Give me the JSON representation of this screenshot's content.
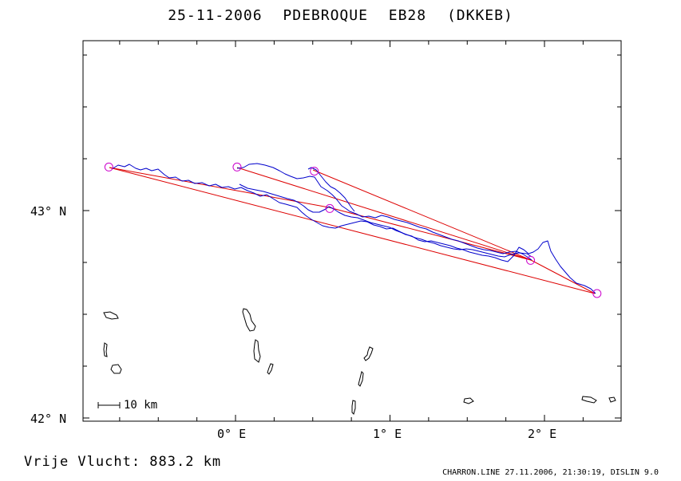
{
  "title": "25-11-2006   PDEBROQUE   EB28 (DKKEB)",
  "y_axis": {
    "ticks": [
      {
        "value": 43,
        "label": "43° N"
      },
      {
        "value": 42,
        "label": "42° N"
      }
    ]
  },
  "x_axis": {
    "ticks": [
      {
        "value": 0,
        "label": "0° E"
      },
      {
        "value": 1,
        "label": "1° E"
      },
      {
        "value": 2,
        "label": "2° E"
      }
    ]
  },
  "scale_bar": {
    "label": "10 km"
  },
  "footer": {
    "distance_text": "Vrije Vlucht:  883.2 km",
    "credit_text": "CHARRON.LINE 27.11.2006, 21:30:19, DISLIN 9.0"
  },
  "turnpoints": [
    {
      "lon": -0.82,
      "lat": 43.21
    },
    {
      "lon": 0.01,
      "lat": 43.21
    },
    {
      "lon": 0.51,
      "lat": 43.19
    },
    {
      "lon": 0.61,
      "lat": 43.01
    },
    {
      "lon": 1.91,
      "lat": 42.76
    },
    {
      "lon": 2.34,
      "lat": 42.6
    }
  ],
  "colors": {
    "track": "#0000cc",
    "route": "#dd0000",
    "turnpoint": "#cc00cc",
    "coast": "#000000"
  }
}
